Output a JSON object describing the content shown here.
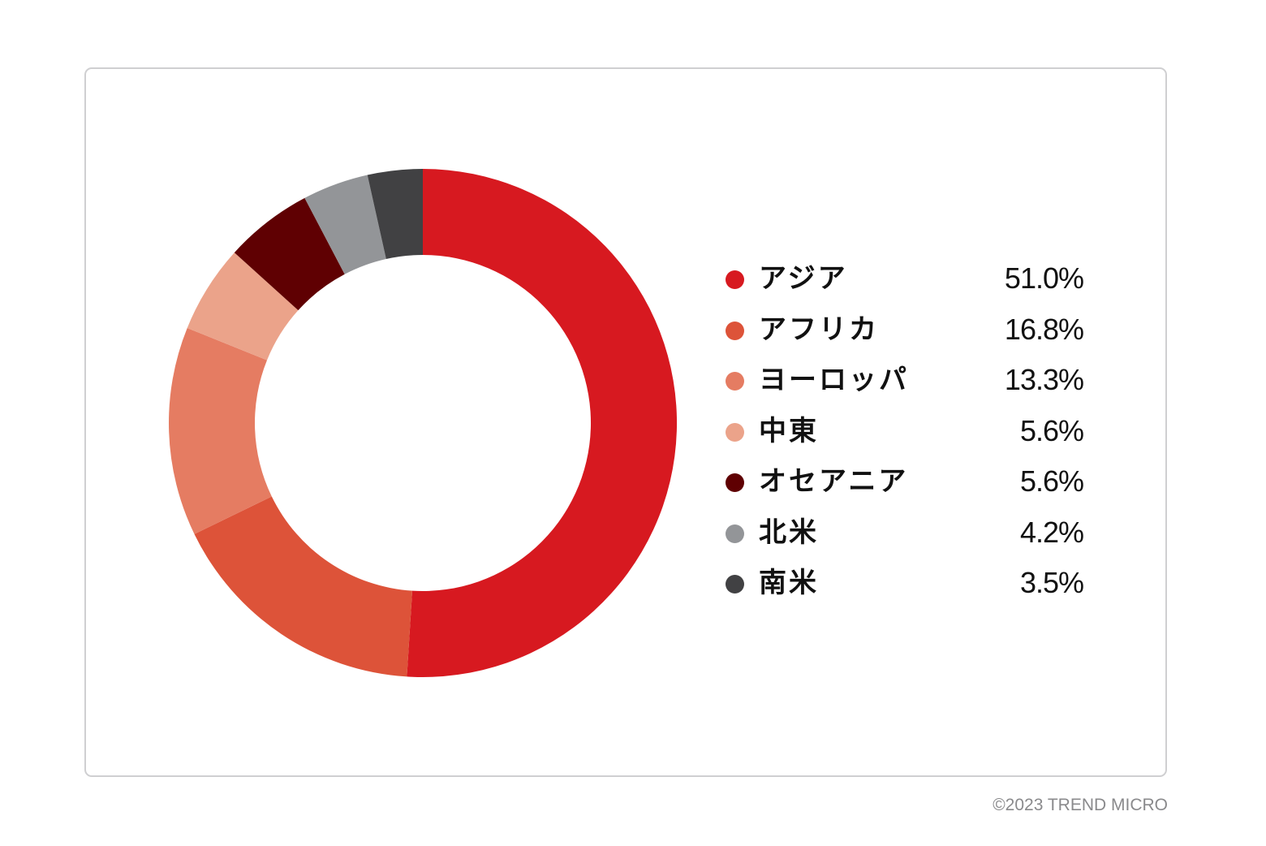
{
  "chart_data": {
    "type": "pie",
    "categories": [
      "アジア",
      "アフリカ",
      "ヨーロッパ",
      "中東",
      "オセアニア",
      "北米",
      "南米"
    ],
    "values": [
      51.0,
      16.8,
      13.3,
      5.6,
      5.6,
      4.2,
      3.5
    ],
    "value_labels": [
      "51.0%",
      "16.8%",
      "13.3%",
      "5.6%",
      "5.6%",
      "4.2%",
      "3.5%"
    ],
    "colors": [
      "#d71920",
      "#dd5339",
      "#e57c62",
      "#eba38a",
      "#5f0002",
      "#939598",
      "#414143"
    ],
    "slice_colors_clockwise": [
      "#d71920",
      "#dd5339",
      "#e57c62",
      "#eba38a",
      "#5f0002",
      "#939598",
      "#414143"
    ],
    "style": "donut",
    "legend_position": "right",
    "title": "",
    "xlabel": "",
    "ylabel": ""
  },
  "footer": {
    "copyright": "©2023 TREND MICRO"
  }
}
